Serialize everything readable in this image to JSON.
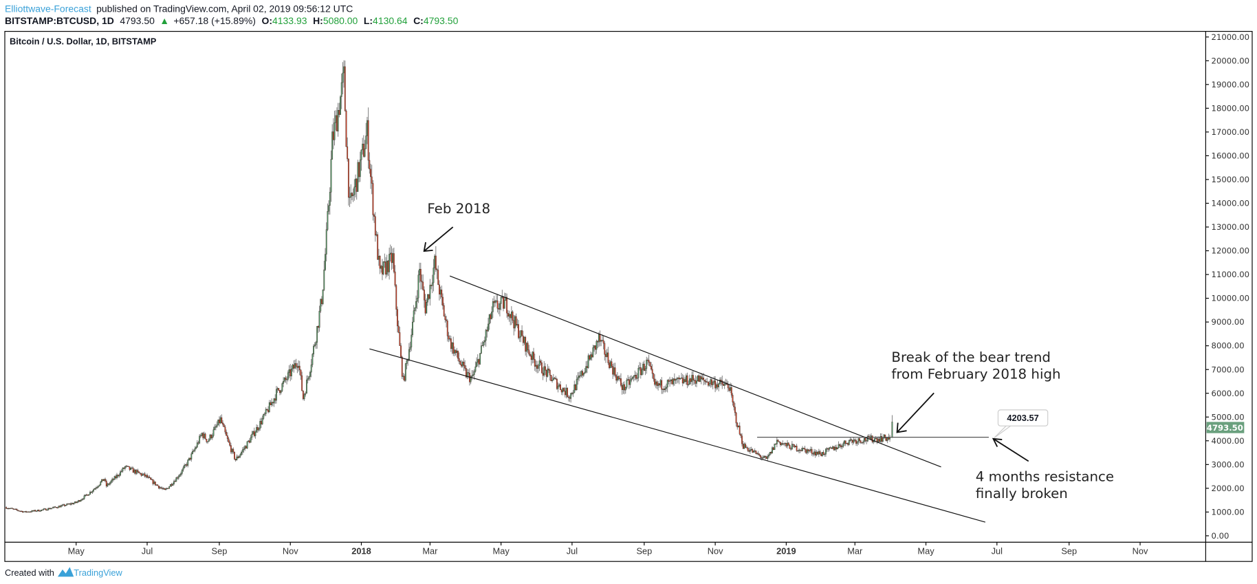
{
  "header": {
    "author": "Elliottwave-Forecast",
    "published": "published on TradingView.com, April 02, 2019 09:56:12 UTC",
    "symbol": "BITSTAMP:BTCUSD, 1D",
    "last": "4793.50",
    "change": "+657.18 (+15.89%)",
    "o_label": "O:",
    "o": "4133.93",
    "h_label": "H:",
    "h": "5080.00",
    "l_label": "L:",
    "l": "4130.64",
    "c_label": "C:",
    "c": "4793.50"
  },
  "footer": {
    "created_with": "Created with",
    "brand": "TradingView"
  },
  "colors": {
    "up": "#53a06f",
    "down": "#d9442c",
    "border": "#3a2a20",
    "wick": "#777777",
    "price_badge": "#6aa07e",
    "link": "#3aa1d8"
  },
  "chart_data": {
    "type": "candlestick",
    "title": "Bitcoin / U.S. Dollar, 1D, BITSTAMP",
    "ylim": [
      0,
      21000
    ],
    "y_ticks": [
      "21000.00",
      "20000.00",
      "19000.00",
      "18000.00",
      "17000.00",
      "16000.00",
      "15000.00",
      "14000.00",
      "13000.00",
      "12000.00",
      "11000.00",
      "10000.00",
      "9000.00",
      "8000.00",
      "7000.00",
      "6000.00",
      "5000.00",
      "4000.00",
      "3000.00",
      "2000.00",
      "1000.00",
      "0.00"
    ],
    "x_range": [
      "2017-03-01",
      "2019-12-31"
    ],
    "x_ticks": [
      "May",
      "Jul",
      "Sep",
      "Nov",
      "2018",
      "Mar",
      "May",
      "Jul",
      "Sep",
      "Nov",
      "2019",
      "Mar",
      "May",
      "Jul",
      "Sep",
      "Nov"
    ],
    "last_price_label": "4793.50",
    "price_keypoints": [
      [
        "2017-03-01",
        1200
      ],
      [
        "2017-03-18",
        1000
      ],
      [
        "2017-04-01",
        1080
      ],
      [
        "2017-05-01",
        1400
      ],
      [
        "2017-05-25",
        2400
      ],
      [
        "2017-05-27",
        2100
      ],
      [
        "2017-06-12",
        2900
      ],
      [
        "2017-06-30",
        2500
      ],
      [
        "2017-07-16",
        1900
      ],
      [
        "2017-08-01",
        2800
      ],
      [
        "2017-08-17",
        4300
      ],
      [
        "2017-08-22",
        4000
      ],
      [
        "2017-09-02",
        4900
      ],
      [
        "2017-09-15",
        3200
      ],
      [
        "2017-10-01",
        4350
      ],
      [
        "2017-10-20",
        6000
      ],
      [
        "2017-11-08",
        7400
      ],
      [
        "2017-11-12",
        5800
      ],
      [
        "2017-11-28",
        10000
      ],
      [
        "2017-12-07",
        16600
      ],
      [
        "2017-12-17",
        19300
      ],
      [
        "2017-12-22",
        13800
      ],
      [
        "2018-01-06",
        17000
      ],
      [
        "2018-01-17",
        11000
      ],
      [
        "2018-01-28",
        11700
      ],
      [
        "2018-02-06",
        6500
      ],
      [
        "2018-02-20",
        11200
      ],
      [
        "2018-02-25",
        9600
      ],
      [
        "2018-03-05",
        11500
      ],
      [
        "2018-03-18",
        8200
      ],
      [
        "2018-04-01",
        6800
      ],
      [
        "2018-04-06",
        6600
      ],
      [
        "2018-04-24",
        9600
      ],
      [
        "2018-05-05",
        9800
      ],
      [
        "2018-05-29",
        7400
      ],
      [
        "2018-06-10",
        6800
      ],
      [
        "2018-06-29",
        5900
      ],
      [
        "2018-07-24",
        8300
      ],
      [
        "2018-08-14",
        6200
      ],
      [
        "2018-09-04",
        7300
      ],
      [
        "2018-09-10",
        6300
      ],
      [
        "2018-10-15",
        6600
      ],
      [
        "2018-11-13",
        6300
      ],
      [
        "2018-11-25",
        3800
      ],
      [
        "2018-12-15",
        3200
      ],
      [
        "2018-12-24",
        4000
      ],
      [
        "2019-01-01",
        3800
      ],
      [
        "2019-01-31",
        3450
      ],
      [
        "2019-02-24",
        4000
      ],
      [
        "2019-03-31",
        4130
      ]
    ],
    "last_candle": {
      "date": "2019-04-02",
      "open": 4133.93,
      "high": 5080.0,
      "low": 4130.64,
      "close": 4793.5
    },
    "drawings": {
      "upper_trendline": [
        [
          "2018-03-18",
          10940
        ],
        [
          "2019-05-14",
          2900
        ]
      ],
      "lower_trendline": [
        [
          "2018-01-08",
          7870
        ],
        [
          "2019-06-21",
          575
        ]
      ],
      "resistance_line": [
        [
          "2018-12-07",
          4150
        ],
        [
          "2019-06-24",
          4150
        ]
      ],
      "resistance_label": "4203.57"
    },
    "annotations": {
      "feb": "Feb 2018",
      "break_line1": "Break of the bear trend",
      "break_line2": "from February 2018 high",
      "resist_line1": "4 months resistance",
      "resist_line2": "finally broken"
    }
  }
}
